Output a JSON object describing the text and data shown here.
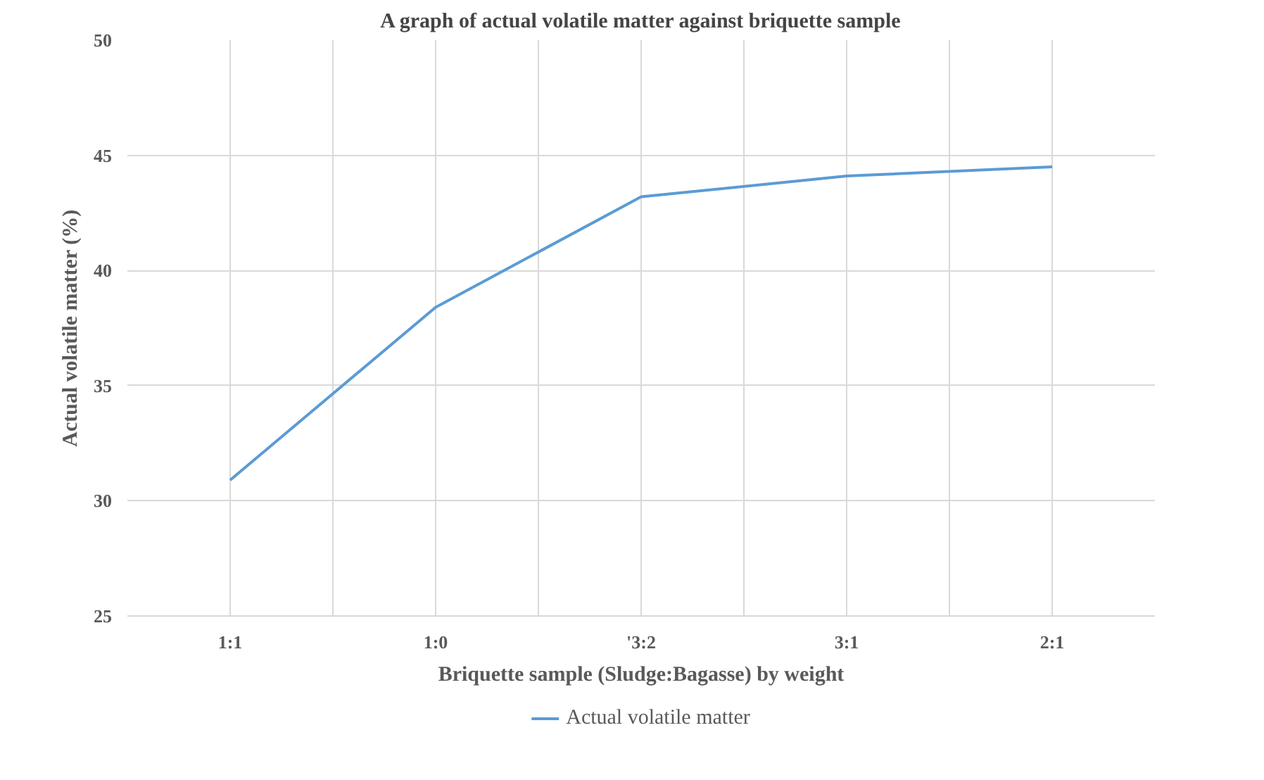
{
  "chart_data": {
    "type": "line",
    "title": "A graph of actual volatile matter against briquette sample",
    "xlabel": "Briquette sample (Sludge:Bagasse) by weight",
    "ylabel": "Actual volatile matter (%)",
    "categories": [
      "1:1",
      "1:0",
      "'3:2",
      "3:1",
      "2:1"
    ],
    "series": [
      {
        "name": "Actual volatile matter",
        "color": "#5b9bd5",
        "values": [
          30.9,
          38.4,
          43.2,
          44.1,
          44.5
        ]
      }
    ],
    "ylim": [
      25,
      50
    ],
    "yticks": [
      25,
      30,
      35,
      40,
      45,
      50
    ],
    "grid": true,
    "legend": "bottom",
    "marker": "none",
    "line_style": "solid"
  }
}
